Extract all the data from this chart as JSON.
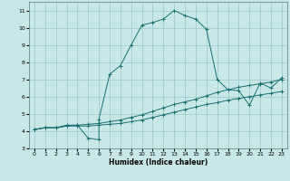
{
  "xlabel": "Humidex (Indice chaleur)",
  "background_color": "#c8e8e8",
  "grid_color": "#9dc8c8",
  "line_color": "#1a7070",
  "xlim": [
    -0.5,
    23.5
  ],
  "ylim": [
    3,
    11.5
  ],
  "xticks": [
    0,
    1,
    2,
    3,
    4,
    5,
    6,
    7,
    8,
    9,
    10,
    11,
    12,
    13,
    14,
    15,
    16,
    17,
    18,
    19,
    20,
    21,
    22,
    23
  ],
  "yticks": [
    3,
    4,
    5,
    6,
    7,
    8,
    9,
    10,
    11
  ],
  "line1_x": [
    0,
    1,
    2,
    3,
    4,
    5,
    6,
    7,
    8,
    9,
    10,
    11,
    12,
    13,
    14,
    15,
    16,
    17,
    18,
    19,
    20,
    21,
    22,
    23
  ],
  "line1_y": [
    4.1,
    4.2,
    4.2,
    4.3,
    4.3,
    4.3,
    4.35,
    4.4,
    4.45,
    4.55,
    4.65,
    4.8,
    4.95,
    5.1,
    5.25,
    5.4,
    5.55,
    5.65,
    5.8,
    5.9,
    6.0,
    6.1,
    6.2,
    6.3
  ],
  "line2_x": [
    0,
    1,
    2,
    3,
    4,
    5,
    6,
    7,
    8,
    9,
    10,
    11,
    12,
    13,
    14,
    15,
    16,
    17,
    18,
    19,
    20,
    21,
    22,
    23
  ],
  "line2_y": [
    4.1,
    4.2,
    4.2,
    4.3,
    4.35,
    4.4,
    4.45,
    4.55,
    4.65,
    4.8,
    4.95,
    5.15,
    5.35,
    5.55,
    5.7,
    5.85,
    6.05,
    6.25,
    6.4,
    6.55,
    6.65,
    6.75,
    6.85,
    7.0
  ],
  "line3_x": [
    0,
    1,
    2,
    3,
    4,
    5,
    6,
    6,
    7,
    8,
    9,
    10,
    11,
    12,
    13,
    14,
    15,
    16,
    17,
    18,
    19,
    20,
    21,
    22,
    23
  ],
  "line3_y": [
    4.1,
    4.2,
    4.2,
    4.35,
    4.35,
    3.6,
    3.5,
    4.7,
    7.3,
    7.8,
    9.0,
    10.15,
    10.3,
    10.5,
    11.0,
    10.7,
    10.5,
    9.9,
    7.0,
    6.4,
    6.35,
    5.5,
    6.8,
    6.5,
    7.1
  ]
}
